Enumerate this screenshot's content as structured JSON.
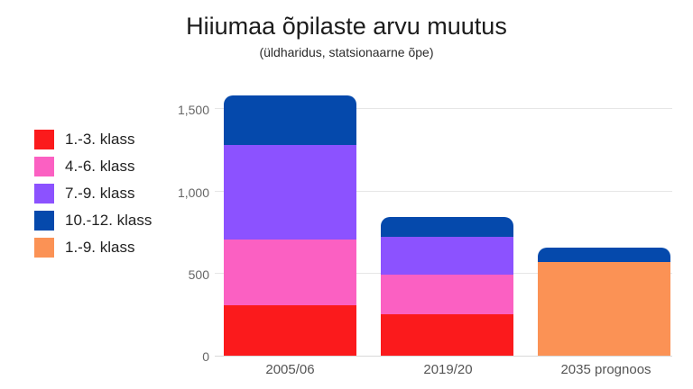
{
  "chart_data": {
    "type": "bar",
    "stacked": true,
    "title": "Hiiumaa õpilaste arvu muutus",
    "subtitle": "(üldharidus, statsionaarne õpe)",
    "categories": [
      "2005/06",
      "2019/20",
      "2035 prognoos"
    ],
    "series": [
      {
        "name": "1.-3. klass",
        "color": "#fb1a1c",
        "values": [
          305,
          250,
          0
        ]
      },
      {
        "name": "4.-6. klass",
        "color": "#fb60c2",
        "values": [
          400,
          245,
          0
        ]
      },
      {
        "name": "7.-9. klass",
        "color": "#8c52ff",
        "values": [
          580,
          230,
          0
        ]
      },
      {
        "name": "10.-12. klass",
        "color": "#0549ac",
        "values": [
          300,
          120,
          90
        ]
      },
      {
        "name": "1.-9. klass",
        "color": "#fb9255",
        "values": [
          0,
          0,
          570
        ]
      }
    ],
    "stack_order": [
      0,
      1,
      2,
      4,
      3
    ],
    "totals": [
      1585,
      845,
      660
    ],
    "ylim": [
      0,
      1650
    ],
    "yticks": [
      {
        "value": 0,
        "label": "0"
      },
      {
        "value": 500,
        "label": "500"
      },
      {
        "value": 1000,
        "label": "1,000"
      },
      {
        "value": 1500,
        "label": "1,500"
      }
    ],
    "grid": true,
    "legend_position": "left",
    "background": "#ffffff"
  }
}
